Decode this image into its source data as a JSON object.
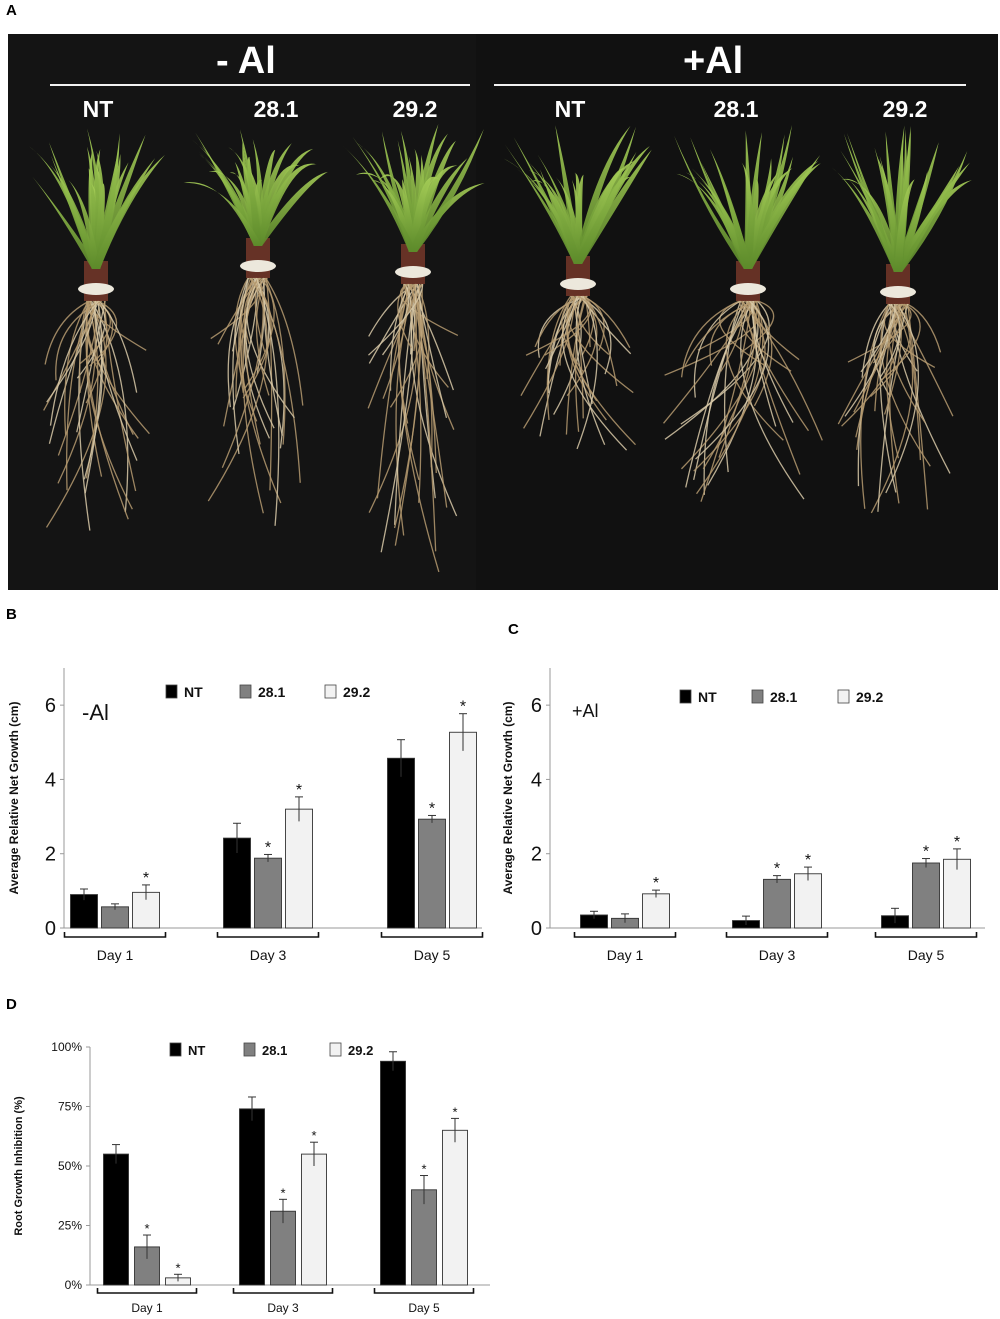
{
  "panels": {
    "a": "A",
    "b": "B",
    "c": "C",
    "d": "D"
  },
  "photo": {
    "conditions": [
      "- Al",
      "+Al"
    ],
    "lines_minus": [
      "NT",
      "28.1",
      "29.2"
    ],
    "lines_plus": [
      "NT",
      "28.1",
      "29.2"
    ],
    "background_color": "#141414"
  },
  "chart_data": [
    {
      "id": "B",
      "type": "bar",
      "annotation": "-Al",
      "ylabel": "Average Relative Net Growth (cm)",
      "xlabel": "",
      "ylim": [
        0,
        7
      ],
      "yticks": [
        "0",
        "2",
        "4",
        "6"
      ],
      "categories": [
        "Day 1",
        "Day 3",
        "Day 5"
      ],
      "legend_position": "top",
      "series": [
        {
          "name": "NT",
          "color": "#000000",
          "values": [
            0.9,
            2.42,
            4.57
          ],
          "errors": [
            0.15,
            0.4,
            0.5
          ],
          "significant": [
            false,
            false,
            false
          ]
        },
        {
          "name": "28.1",
          "color": "#808080",
          "values": [
            0.57,
            1.88,
            2.93
          ],
          "errors": [
            0.08,
            0.1,
            0.1
          ],
          "significant": [
            false,
            true,
            true
          ]
        },
        {
          "name": "29.2",
          "color": "#f2f2f2",
          "values": [
            0.96,
            3.2,
            5.27
          ],
          "errors": [
            0.2,
            0.33,
            0.5
          ],
          "significant": [
            true,
            true,
            true
          ]
        }
      ]
    },
    {
      "id": "C",
      "type": "bar",
      "annotation": "+Al",
      "ylabel": "Average Relative Net Growth (cm)",
      "xlabel": "",
      "ylim": [
        0,
        7
      ],
      "yticks": [
        "0",
        "2",
        "4",
        "6"
      ],
      "categories": [
        "Day 1",
        "Day 3",
        "Day 5"
      ],
      "legend_position": "top",
      "series": [
        {
          "name": "NT",
          "color": "#000000",
          "values": [
            0.35,
            0.2,
            0.33
          ],
          "errors": [
            0.1,
            0.12,
            0.2
          ],
          "significant": [
            false,
            false,
            false
          ]
        },
        {
          "name": "28.1",
          "color": "#808080",
          "values": [
            0.26,
            1.31,
            1.75
          ],
          "errors": [
            0.12,
            0.1,
            0.12
          ],
          "significant": [
            false,
            true,
            true
          ]
        },
        {
          "name": "29.2",
          "color": "#f2f2f2",
          "values": [
            0.92,
            1.46,
            1.85
          ],
          "errors": [
            0.1,
            0.18,
            0.28
          ],
          "significant": [
            true,
            true,
            true
          ]
        }
      ]
    },
    {
      "id": "D",
      "type": "bar",
      "annotation": "",
      "ylabel": "Root Growth Inhibition (%)",
      "xlabel": "",
      "ylim": [
        0,
        100
      ],
      "yticks": [
        "0%",
        "25%",
        "50%",
        "75%",
        "100%"
      ],
      "categories": [
        "Day 1",
        "Day 3",
        "Day 5"
      ],
      "legend_position": "top",
      "series": [
        {
          "name": "NT",
          "color": "#000000",
          "values": [
            55,
            74,
            94
          ],
          "errors": [
            4,
            5,
            4
          ],
          "significant": [
            false,
            false,
            false
          ]
        },
        {
          "name": "28.1",
          "color": "#808080",
          "values": [
            16,
            31,
            40
          ],
          "errors": [
            5,
            5,
            6
          ],
          "significant": [
            true,
            true,
            true
          ]
        },
        {
          "name": "29.2",
          "color": "#f2f2f2",
          "values": [
            3,
            55,
            65
          ],
          "errors": [
            1.5,
            5,
            5
          ],
          "significant": [
            true,
            true,
            true
          ]
        }
      ]
    }
  ]
}
